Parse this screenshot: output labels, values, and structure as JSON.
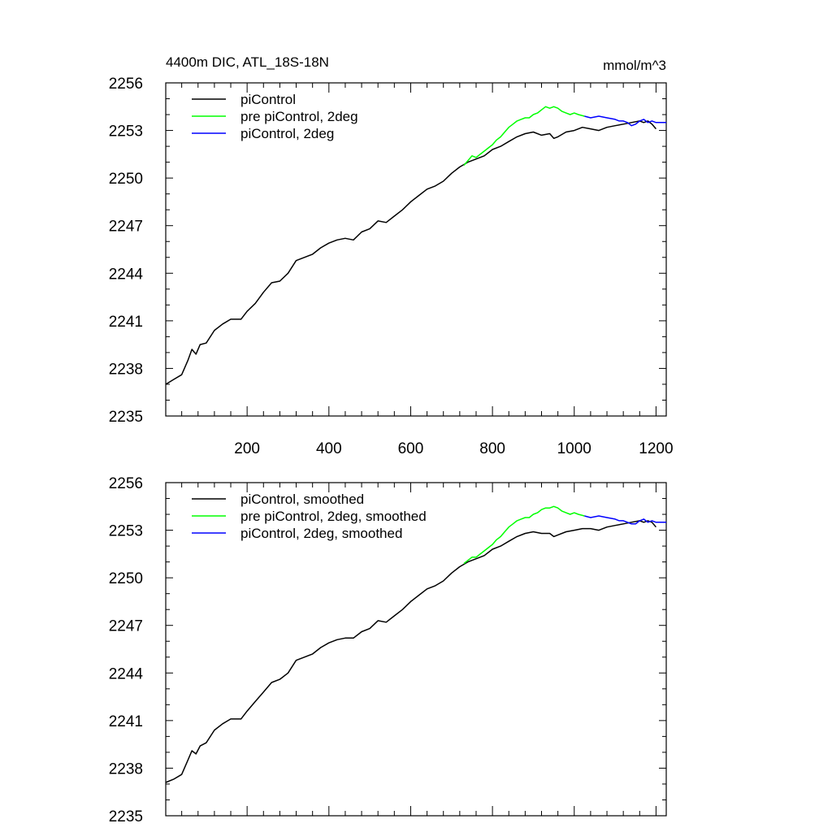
{
  "figure": {
    "title_left": "4400m DIC, ATL_18S-18N",
    "title_right": "mmol/m^3"
  },
  "colors": {
    "piControl": "#000000",
    "pre_piControl_2deg": "#00ff00",
    "piControl_2deg": "#0000ff"
  },
  "chart_data": [
    {
      "type": "line",
      "panel": "top",
      "title": "4400m DIC, ATL_18S-18N",
      "units": "mmol/m^3",
      "xlim": [
        1,
        1225
      ],
      "ylim": [
        2235,
        2256
      ],
      "yticks": [
        2235,
        2238,
        2241,
        2244,
        2247,
        2250,
        2253,
        2256
      ],
      "xticks": [
        200,
        400,
        600,
        800,
        1000,
        1200
      ],
      "x_tick_labels_shown": true,
      "legend": {
        "placement": "top-left",
        "entries": [
          "piControl",
          "pre piControl, 2deg",
          "piControl, 2deg"
        ]
      },
      "series": [
        {
          "name": "piControl",
          "color_key": "piControl",
          "x": [
            1,
            20,
            40,
            55,
            65,
            75,
            85,
            100,
            120,
            140,
            160,
            185,
            200,
            220,
            240,
            260,
            280,
            300,
            320,
            340,
            360,
            380,
            400,
            420,
            440,
            460,
            480,
            500,
            520,
            540,
            560,
            580,
            600,
            620,
            640,
            660,
            680,
            700,
            720,
            740,
            760,
            780,
            800,
            820,
            840,
            860,
            880,
            900,
            920,
            940,
            950,
            960,
            980,
            1000,
            1020,
            1040,
            1060,
            1080,
            1100,
            1120,
            1140,
            1160,
            1170,
            1180,
            1190,
            1200
          ],
          "values": [
            2237.0,
            2237.3,
            2237.6,
            2238.5,
            2239.2,
            2238.9,
            2239.5,
            2239.6,
            2240.4,
            2240.8,
            2241.1,
            2241.1,
            2241.6,
            2242.1,
            2242.8,
            2243.4,
            2243.5,
            2244.0,
            2244.8,
            2245.0,
            2245.2,
            2245.6,
            2245.9,
            2246.1,
            2246.2,
            2246.1,
            2246.6,
            2246.8,
            2247.3,
            2247.2,
            2247.6,
            2248.0,
            2248.5,
            2248.9,
            2249.3,
            2249.5,
            2249.8,
            2250.3,
            2250.7,
            2251.0,
            2251.2,
            2251.4,
            2251.8,
            2252.0,
            2252.3,
            2252.6,
            2252.8,
            2252.9,
            2252.7,
            2252.8,
            2252.5,
            2252.6,
            2252.9,
            2253.0,
            2253.2,
            2253.1,
            2253.0,
            2253.2,
            2253.3,
            2253.4,
            2253.5,
            2253.6,
            2253.5,
            2253.6,
            2253.4,
            2253.1
          ]
        },
        {
          "name": "pre piControl, 2deg",
          "color_key": "pre_piControl_2deg",
          "x": [
            730,
            740,
            750,
            760,
            770,
            780,
            790,
            800,
            810,
            820,
            830,
            840,
            850,
            860,
            870,
            880,
            890,
            900,
            910,
            920,
            930,
            940,
            950,
            960,
            970,
            980,
            990,
            1000,
            1010,
            1025
          ],
          "values": [
            2250.8,
            2251.1,
            2251.4,
            2251.3,
            2251.5,
            2251.7,
            2251.9,
            2252.1,
            2252.4,
            2252.6,
            2252.9,
            2253.2,
            2253.4,
            2253.6,
            2253.7,
            2253.8,
            2253.8,
            2254.0,
            2254.1,
            2254.3,
            2254.5,
            2254.4,
            2254.5,
            2254.4,
            2254.2,
            2254.1,
            2254.0,
            2254.1,
            2254.0,
            2253.9
          ]
        },
        {
          "name": "piControl, 2deg",
          "color_key": "piControl_2deg",
          "x": [
            1025,
            1040,
            1060,
            1080,
            1100,
            1110,
            1120,
            1130,
            1140,
            1150,
            1160,
            1170,
            1180,
            1190,
            1200,
            1210,
            1225
          ],
          "values": [
            2253.9,
            2253.8,
            2253.9,
            2253.8,
            2253.7,
            2253.6,
            2253.6,
            2253.5,
            2253.3,
            2253.4,
            2253.6,
            2253.7,
            2253.5,
            2253.6,
            2253.5,
            2253.5,
            2253.5
          ]
        }
      ]
    },
    {
      "type": "line",
      "panel": "bottom",
      "title": "",
      "units": "",
      "xlim": [
        1,
        1225
      ],
      "ylim": [
        2235,
        2256
      ],
      "yticks": [
        2235,
        2238,
        2241,
        2244,
        2247,
        2250,
        2253,
        2256
      ],
      "xticks": [
        200,
        400,
        600,
        800,
        1000,
        1200
      ],
      "x_tick_labels_shown": false,
      "legend": {
        "placement": "top-left",
        "entries": [
          "piControl, smoothed",
          "pre piControl, 2deg, smoothed",
          "piControl, 2deg, smoothed"
        ]
      },
      "series": [
        {
          "name": "piControl, smoothed",
          "color_key": "piControl",
          "x": [
            1,
            20,
            40,
            55,
            65,
            75,
            85,
            100,
            120,
            140,
            160,
            185,
            200,
            220,
            240,
            260,
            280,
            300,
            320,
            340,
            360,
            380,
            400,
            420,
            440,
            460,
            480,
            500,
            520,
            540,
            560,
            580,
            600,
            620,
            640,
            660,
            680,
            700,
            720,
            740,
            760,
            780,
            800,
            820,
            840,
            860,
            880,
            900,
            920,
            940,
            950,
            960,
            980,
            1000,
            1020,
            1040,
            1060,
            1080,
            1100,
            1120,
            1140,
            1160,
            1170,
            1180,
            1190,
            1200
          ],
          "values": [
            2237.1,
            2237.3,
            2237.6,
            2238.5,
            2239.1,
            2238.9,
            2239.4,
            2239.6,
            2240.4,
            2240.8,
            2241.1,
            2241.1,
            2241.6,
            2242.2,
            2242.8,
            2243.4,
            2243.6,
            2244.0,
            2244.8,
            2245.0,
            2245.2,
            2245.6,
            2245.9,
            2246.1,
            2246.2,
            2246.2,
            2246.6,
            2246.8,
            2247.3,
            2247.2,
            2247.6,
            2248.0,
            2248.5,
            2248.9,
            2249.3,
            2249.5,
            2249.8,
            2250.3,
            2250.7,
            2251.0,
            2251.2,
            2251.4,
            2251.8,
            2252.0,
            2252.3,
            2252.6,
            2252.8,
            2252.9,
            2252.8,
            2252.8,
            2252.6,
            2252.7,
            2252.9,
            2253.0,
            2253.1,
            2253.1,
            2253.0,
            2253.2,
            2253.3,
            2253.4,
            2253.5,
            2253.6,
            2253.5,
            2253.6,
            2253.5,
            2253.2
          ]
        },
        {
          "name": "pre piControl, 2deg, smoothed",
          "color_key": "pre_piControl_2deg",
          "x": [
            730,
            740,
            750,
            760,
            770,
            780,
            790,
            800,
            810,
            820,
            830,
            840,
            850,
            860,
            870,
            880,
            890,
            900,
            910,
            920,
            930,
            940,
            950,
            960,
            970,
            980,
            990,
            1000,
            1010,
            1025
          ],
          "values": [
            2250.9,
            2251.1,
            2251.3,
            2251.3,
            2251.5,
            2251.7,
            2251.9,
            2252.1,
            2252.4,
            2252.6,
            2252.9,
            2253.2,
            2253.4,
            2253.6,
            2253.7,
            2253.8,
            2253.8,
            2254.0,
            2254.1,
            2254.3,
            2254.4,
            2254.4,
            2254.5,
            2254.4,
            2254.2,
            2254.1,
            2254.0,
            2254.1,
            2254.0,
            2253.9
          ]
        },
        {
          "name": "piControl, 2deg, smoothed",
          "color_key": "piControl_2deg",
          "x": [
            1025,
            1040,
            1060,
            1080,
            1100,
            1110,
            1120,
            1130,
            1140,
            1150,
            1160,
            1170,
            1180,
            1190,
            1200,
            1210,
            1225
          ],
          "values": [
            2253.9,
            2253.8,
            2253.9,
            2253.8,
            2253.7,
            2253.6,
            2253.6,
            2253.5,
            2253.4,
            2253.4,
            2253.6,
            2253.7,
            2253.5,
            2253.6,
            2253.5,
            2253.5,
            2253.5
          ]
        }
      ]
    }
  ]
}
